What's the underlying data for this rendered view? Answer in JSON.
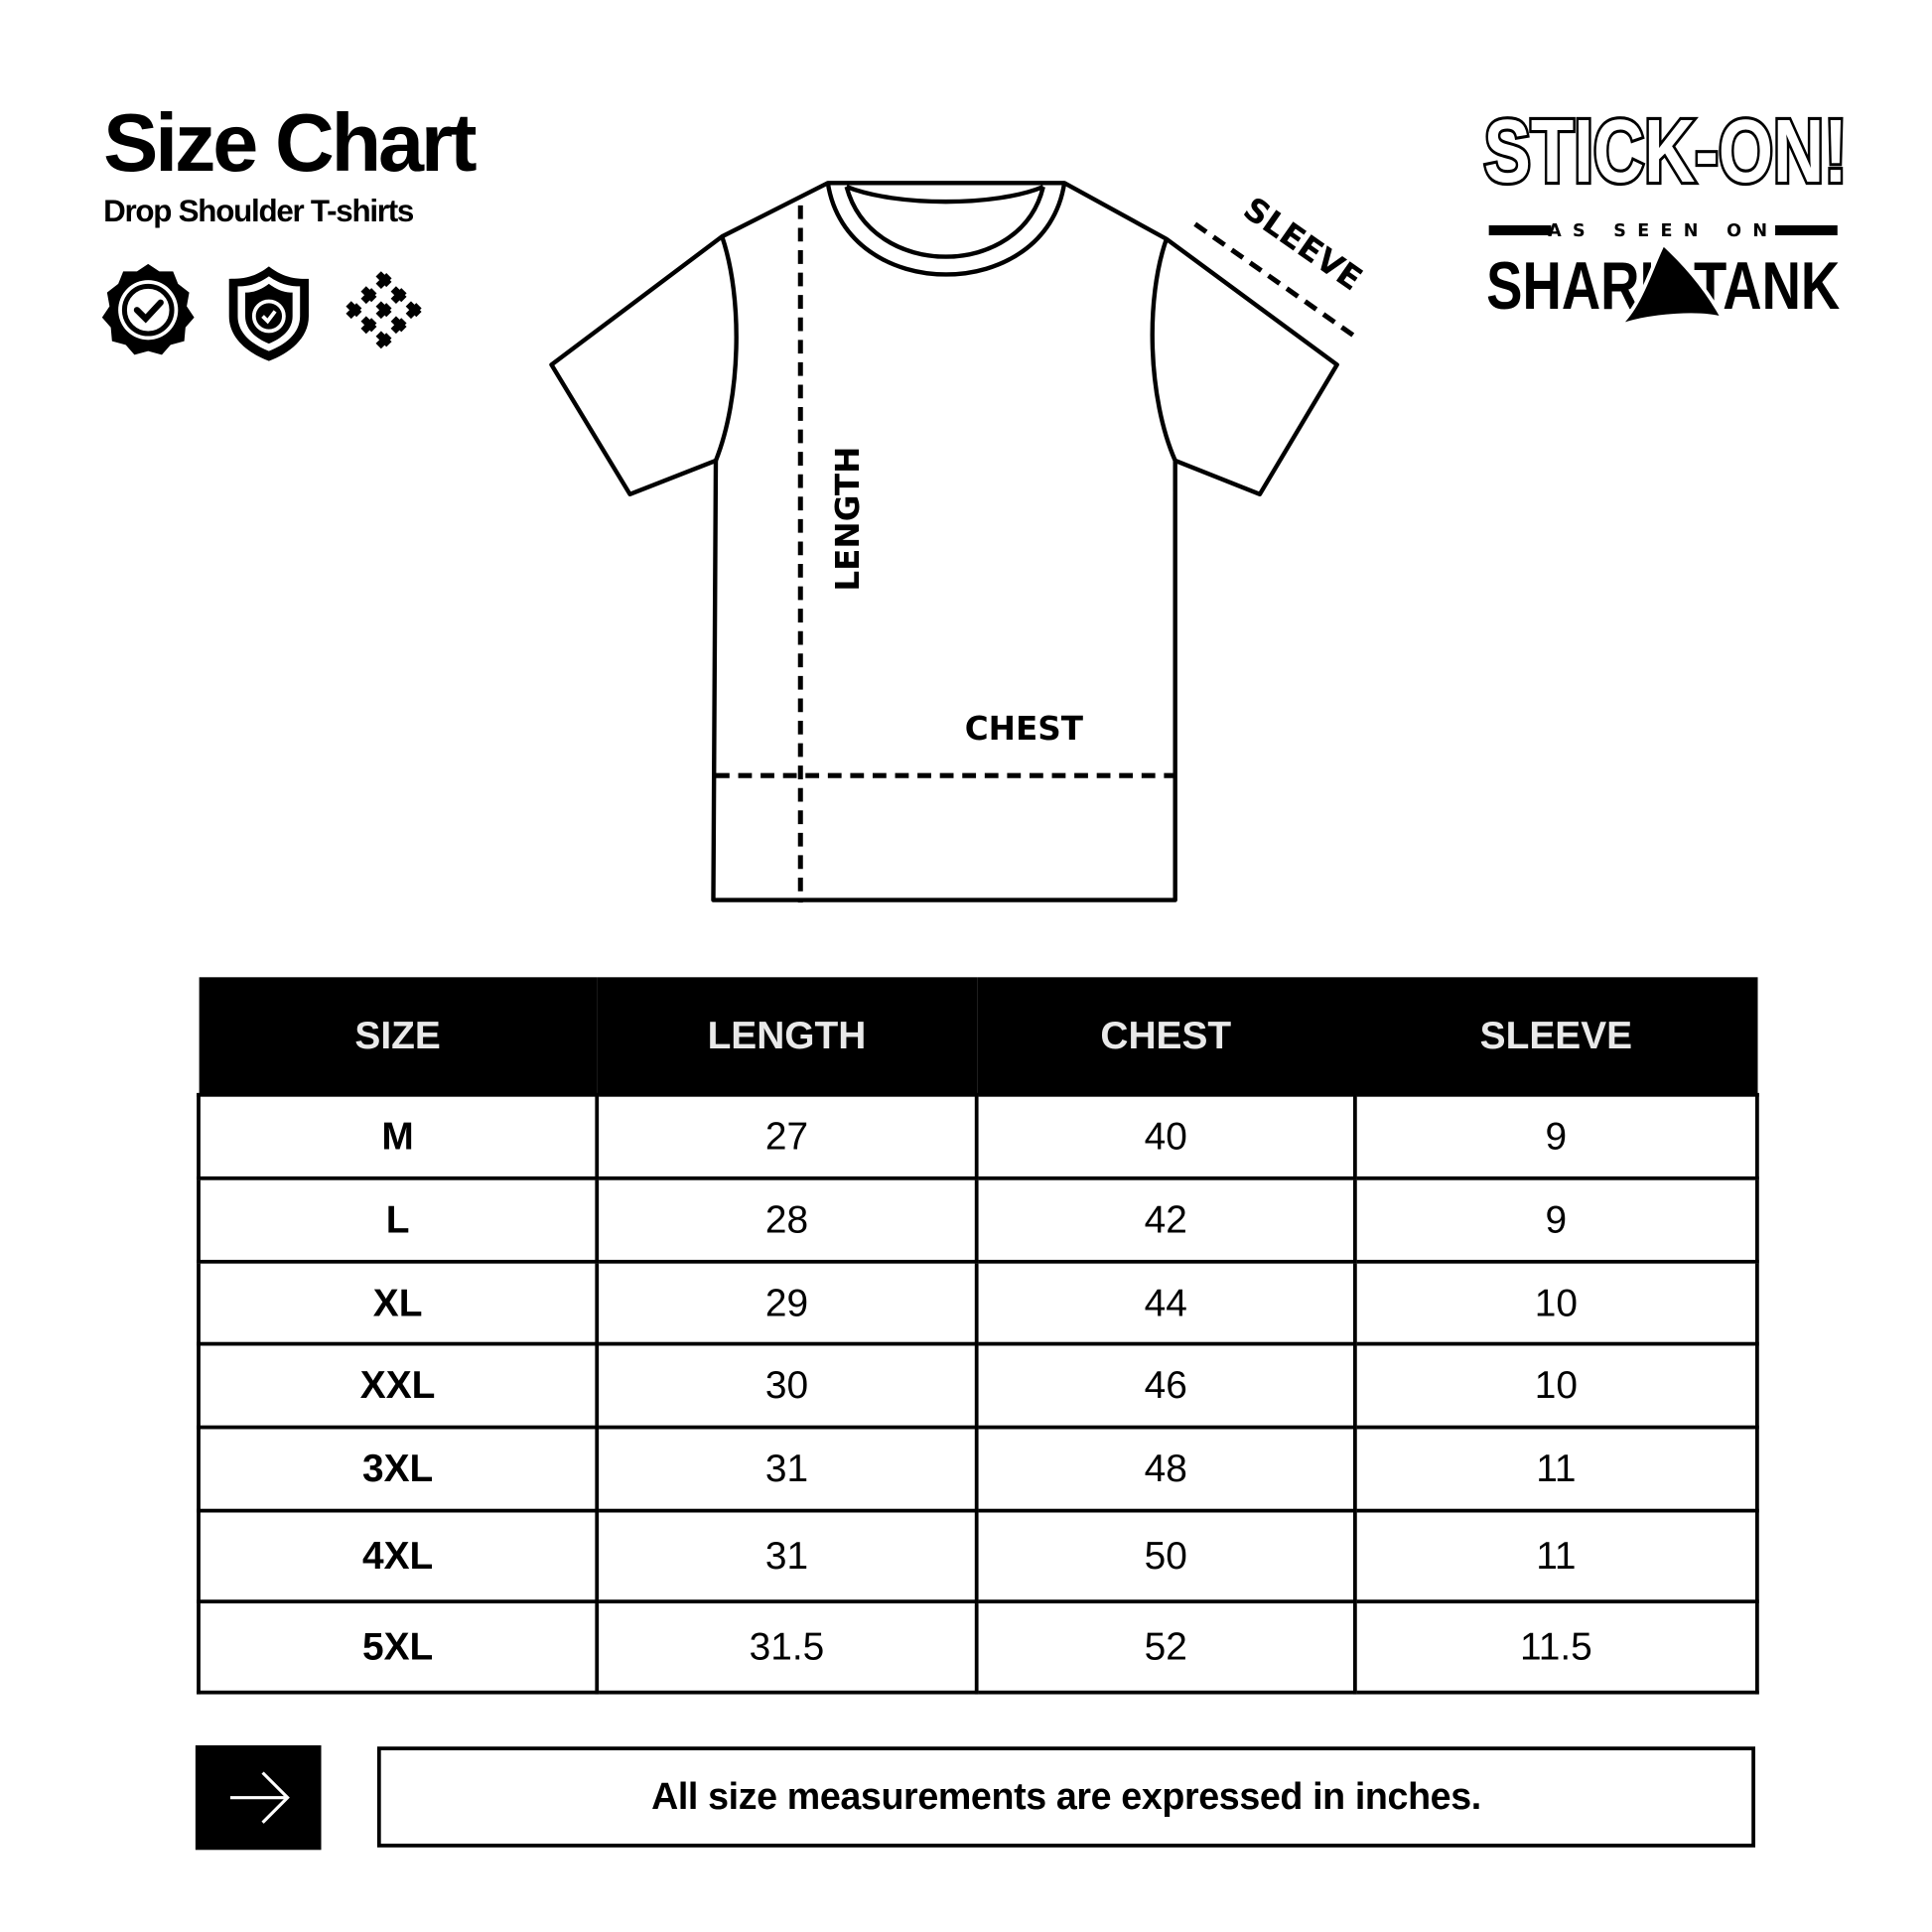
{
  "header": {
    "title": "Size Chart",
    "subtitle": "Drop Shoulder T-shirts"
  },
  "badges": [
    "verified-badge-icon",
    "shield-refresh-icon",
    "woven-fabric-icon"
  ],
  "brand": {
    "logo_text": "STICK-ON!",
    "tagline": "AS SEEN ON",
    "show": "SHARK TANK"
  },
  "diagram": {
    "length_label": "LENGTH",
    "chest_label": "CHEST",
    "sleeve_label": "SLEEVE"
  },
  "table": {
    "headers": [
      "SIZE",
      "LENGTH",
      "CHEST",
      "SLEEVE"
    ],
    "rows": [
      [
        "M",
        "27",
        "40",
        "9"
      ],
      [
        "L",
        "28",
        "42",
        "9"
      ],
      [
        "XL",
        "29",
        "44",
        "10"
      ],
      [
        "XXL",
        "30",
        "46",
        "10"
      ],
      [
        "3XL",
        "31",
        "48",
        "11"
      ],
      [
        "4XL",
        "31",
        "50",
        "11"
      ],
      [
        "5XL",
        "31.5",
        "52",
        "11.5"
      ]
    ]
  },
  "footer": {
    "note": "All size measurements are expressed in inches.",
    "icon": "arrow-right-icon"
  }
}
